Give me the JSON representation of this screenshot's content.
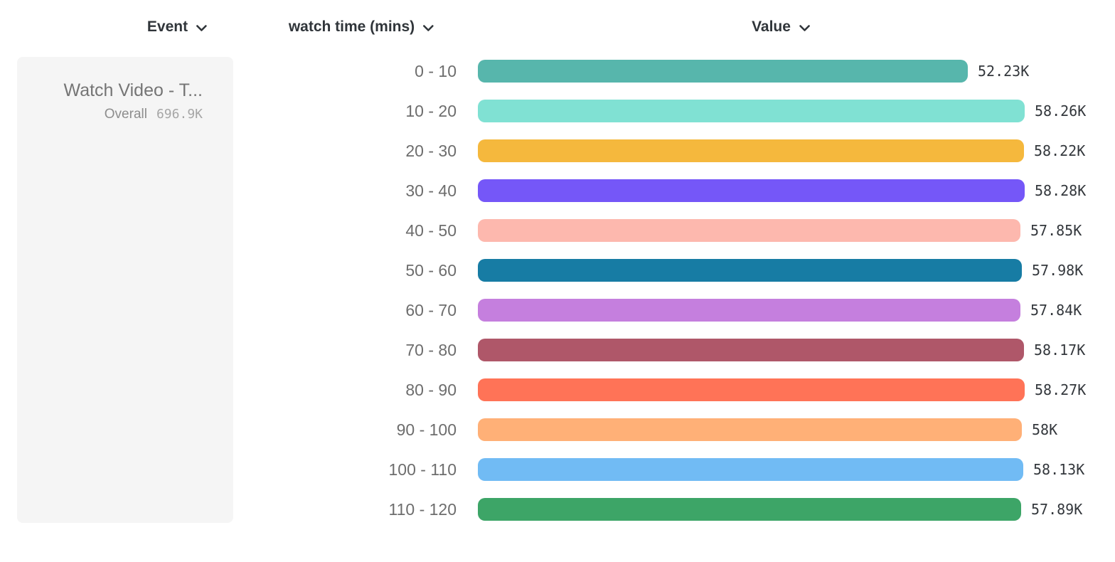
{
  "header": {
    "event": {
      "label": "Event"
    },
    "breakdown": {
      "label": "watch time (mins)"
    },
    "value": {
      "label": "Value"
    }
  },
  "event_card": {
    "title": "Watch Video - T...",
    "overall_label": "Overall",
    "overall_value": "696.9K"
  },
  "chart_data": {
    "type": "bar",
    "orientation": "horizontal",
    "title": "",
    "xlabel": "Value",
    "ylabel": "watch time (mins)",
    "categories": [
      "0 - 10",
      "10 - 20",
      "20 - 30",
      "30 - 40",
      "40 - 50",
      "50 - 60",
      "60 - 70",
      "70 - 80",
      "80 - 90",
      "90 - 100",
      "100 - 110",
      "110 - 120"
    ],
    "values": [
      52230,
      58260,
      58220,
      58280,
      57850,
      57980,
      57840,
      58170,
      58270,
      58000,
      58130,
      57890
    ],
    "value_labels": [
      "52.23K",
      "58.26K",
      "58.22K",
      "58.28K",
      "57.85K",
      "57.98K",
      "57.84K",
      "58.17K",
      "58.27K",
      "58K",
      "58.13K",
      "57.89K"
    ],
    "bar_colors": [
      "#57B6AC",
      "#80E1D3",
      "#F5B83D",
      "#7557F8",
      "#FDB8AE",
      "#177CA4",
      "#C57FDE",
      "#AF5769",
      "#FF7357",
      "#FFB077",
      "#71BBF4",
      "#3DA567"
    ],
    "xlim": [
      0,
      58280
    ],
    "grid": false,
    "legend": false
  },
  "colors": {
    "background": "#FFFFFF",
    "header_text": "#30353A",
    "category_label": "#6D6D6D",
    "value_label": "#33373C",
    "card_bg": "#F5F5F5",
    "card_title": "#757575",
    "overall_label": "#8D8D8D",
    "overall_value": "#A6A6A6"
  }
}
